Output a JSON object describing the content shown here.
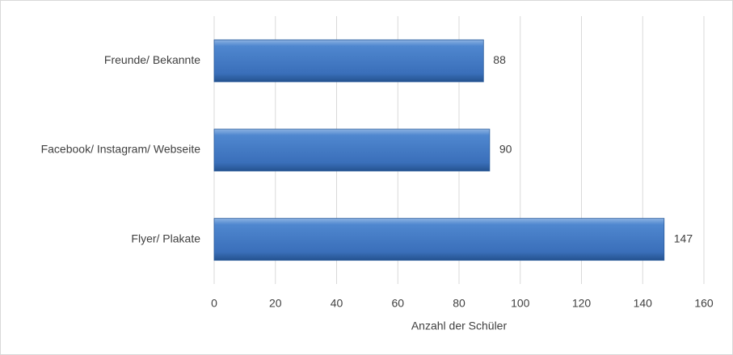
{
  "chart_data": {
    "type": "bar",
    "orientation": "horizontal",
    "categories": [
      "Freunde/ Bekannte",
      "Facebook/ Instagram/ Webseite",
      "Flyer/ Plakate"
    ],
    "values": [
      88,
      90,
      147
    ],
    "color": "#4a7ebb",
    "x_label": "Anzahl der Schüler",
    "xlim": [
      0,
      160
    ],
    "xticks": [
      0,
      20,
      40,
      60,
      80,
      100,
      120,
      140,
      160
    ],
    "grid": true
  }
}
